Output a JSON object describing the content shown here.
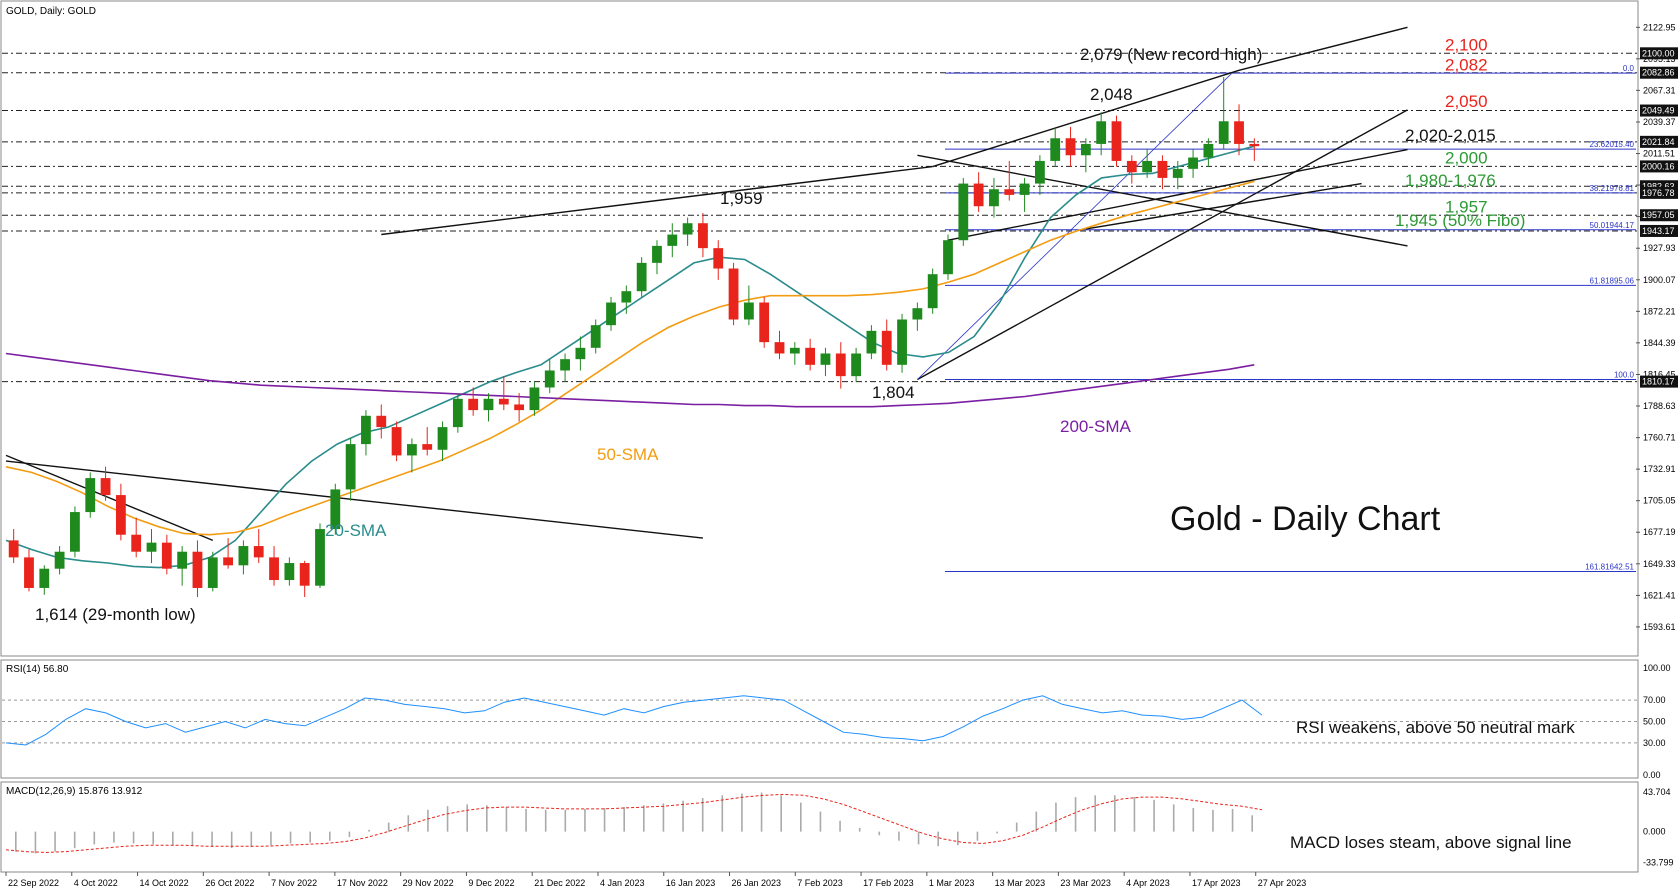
{
  "chart_data": {
    "type": "candlestick",
    "symbol_header": "GOLD, Daily:  GOLD",
    "watermark_title": "Gold - Daily Chart",
    "price_axis_ticks": [
      2122.95,
      2095.13,
      2067.31,
      2039.37,
      2011.51,
      1983.69,
      1955.87,
      1927.93,
      1900.07,
      1872.21,
      1844.39,
      1816.45,
      1788.63,
      1760.71,
      1732.91,
      1705.05,
      1677.19,
      1649.33,
      1621.41,
      1593.61
    ],
    "price_ylim": [
      1575,
      2140
    ],
    "x_labels": [
      "22 Sep 2022",
      "4 Oct 2022",
      "14 Oct 2022",
      "26 Oct 2022",
      "7 Nov 2022",
      "17 Nov 2022",
      "29 Nov 2022",
      "9 Dec 2022",
      "21 Dec 2022",
      "4 Jan 2023",
      "16 Jan 2023",
      "26 Jan 2023",
      "7 Feb 2023",
      "17 Feb 2023",
      "1 Mar 2023",
      "13 Mar 2023",
      "23 Mar 2023",
      "4 Apr 2023",
      "17 Apr 2023",
      "27 Apr 2023"
    ],
    "price_tags": [
      {
        "value": 2100.0,
        "label": "2100.00"
      },
      {
        "value": 2082.86,
        "label": "2082.86"
      },
      {
        "value": 2049.49,
        "label": "2049.49"
      },
      {
        "value": 2021.84,
        "label": "2021.84"
      },
      {
        "value": 2000.16,
        "label": "2000.16"
      },
      {
        "value": 1982.63,
        "label": "1982.63"
      },
      {
        "value": 1976.78,
        "label": "1976.78"
      },
      {
        "value": 1957.05,
        "label": "1957.05"
      },
      {
        "value": 1943.17,
        "label": "1943.17"
      },
      {
        "value": 1810.17,
        "label": "1810.17"
      }
    ],
    "fib_levels": [
      {
        "label": "0.0",
        "value": 2082.5
      },
      {
        "label": "23.62015.40",
        "value": 2015.4
      },
      {
        "label": "38.21976.81",
        "value": 1976.8
      },
      {
        "label": "50.01944.17",
        "value": 1944.2
      },
      {
        "label": "61.81895.06",
        "value": 1895.1
      },
      {
        "label": "100.0",
        "value": 1812.0
      },
      {
        "label": "161.81642.51",
        "value": 1642.5
      }
    ],
    "level_annotations": [
      {
        "text": "2,100",
        "value": 2100,
        "color": "#e8241c"
      },
      {
        "text": "2,082",
        "value": 2082,
        "color": "#e8241c"
      },
      {
        "text": "2,050",
        "value": 2050,
        "color": "#e8241c"
      },
      {
        "text": "2,020-2,015",
        "value": 2020,
        "color": "#111111"
      },
      {
        "text": "2,000",
        "value": 2000,
        "color": "#2e9a36"
      },
      {
        "text": "1,980-1,976",
        "value": 1980,
        "color": "#2e9a36"
      },
      {
        "text": "1,957",
        "value": 1957,
        "color": "#2e9a36"
      },
      {
        "text": "1,945 (50% Fibo)",
        "value": 1945,
        "color": "#2e9a36"
      }
    ],
    "point_annotations": [
      "2,079 (New record high)",
      "2,048",
      "1,959",
      "1,804",
      "1,614 (29-month low)"
    ],
    "ma_labels": [
      "20-SMA",
      "50-SMA",
      "200-SMA"
    ],
    "series": [
      {
        "name": "20-SMA",
        "color": "#2a8c8c",
        "values": [
          1670,
          1662,
          1655,
          1652,
          1650,
          1647,
          1646,
          1648,
          1655,
          1670,
          1695,
          1720,
          1740,
          1755,
          1765,
          1770,
          1780,
          1790,
          1800,
          1810,
          1818,
          1825,
          1840,
          1855,
          1870,
          1885,
          1900,
          1915,
          1920,
          1918,
          1905,
          1890,
          1875,
          1860,
          1845,
          1835,
          1832,
          1836,
          1850,
          1880,
          1920,
          1955,
          1975,
          1990,
          1993,
          1994,
          2000,
          2006,
          2012,
          2018
        ]
      },
      {
        "name": "50-SMA",
        "color": "#f39c12",
        "values": [
          1735,
          1730,
          1722,
          1712,
          1700,
          1690,
          1682,
          1676,
          1675,
          1677,
          1683,
          1692,
          1700,
          1708,
          1716,
          1724,
          1732,
          1740,
          1750,
          1760,
          1772,
          1785,
          1800,
          1815,
          1830,
          1845,
          1858,
          1868,
          1876,
          1882,
          1886,
          1886,
          1886,
          1886,
          1887,
          1889,
          1892,
          1898,
          1905,
          1915,
          1925,
          1935,
          1943,
          1950,
          1957,
          1963,
          1969,
          1975,
          1981,
          1987
        ]
      },
      {
        "name": "200-SMA",
        "color": "#7b1fa2",
        "values": [
          1835,
          1832,
          1829,
          1826,
          1823,
          1820,
          1817,
          1814,
          1811,
          1809,
          1807,
          1806,
          1805,
          1804,
          1803,
          1802,
          1801,
          1800,
          1799,
          1798,
          1797,
          1796,
          1795,
          1794,
          1793,
          1792,
          1791,
          1790,
          1790,
          1789,
          1789,
          1788,
          1788,
          1788,
          1788,
          1789,
          1790,
          1791,
          1793,
          1795,
          1797,
          1800,
          1803,
          1806,
          1809,
          1812,
          1815,
          1818,
          1821,
          1825
        ]
      }
    ],
    "candles_ohlc": [
      [
        1670,
        1680,
        1650,
        1655
      ],
      [
        1655,
        1662,
        1625,
        1628
      ],
      [
        1628,
        1648,
        1622,
        1645
      ],
      [
        1645,
        1665,
        1640,
        1660
      ],
      [
        1660,
        1700,
        1655,
        1695
      ],
      [
        1695,
        1730,
        1690,
        1725
      ],
      [
        1725,
        1735,
        1705,
        1710
      ],
      [
        1710,
        1720,
        1670,
        1675
      ],
      [
        1675,
        1690,
        1655,
        1660
      ],
      [
        1660,
        1680,
        1650,
        1668
      ],
      [
        1668,
        1675,
        1640,
        1645
      ],
      [
        1645,
        1665,
        1630,
        1660
      ],
      [
        1660,
        1670,
        1620,
        1628
      ],
      [
        1628,
        1660,
        1625,
        1655
      ],
      [
        1655,
        1672,
        1645,
        1648
      ],
      [
        1648,
        1670,
        1640,
        1665
      ],
      [
        1665,
        1680,
        1650,
        1655
      ],
      [
        1655,
        1665,
        1630,
        1635
      ],
      [
        1635,
        1655,
        1630,
        1650
      ],
      [
        1650,
        1652,
        1620,
        1630
      ],
      [
        1630,
        1685,
        1628,
        1680
      ],
      [
        1680,
        1720,
        1675,
        1715
      ],
      [
        1715,
        1760,
        1705,
        1755
      ],
      [
        1755,
        1785,
        1745,
        1780
      ],
      [
        1780,
        1790,
        1760,
        1770
      ],
      [
        1770,
        1775,
        1740,
        1745
      ],
      [
        1745,
        1760,
        1730,
        1755
      ],
      [
        1755,
        1770,
        1745,
        1750
      ],
      [
        1750,
        1775,
        1740,
        1770
      ],
      [
        1770,
        1800,
        1765,
        1795
      ],
      [
        1795,
        1805,
        1780,
        1785
      ],
      [
        1785,
        1800,
        1775,
        1795
      ],
      [
        1795,
        1815,
        1785,
        1790
      ],
      [
        1790,
        1800,
        1775,
        1785
      ],
      [
        1785,
        1810,
        1780,
        1805
      ],
      [
        1805,
        1830,
        1800,
        1820
      ],
      [
        1820,
        1835,
        1810,
        1830
      ],
      [
        1830,
        1850,
        1820,
        1840
      ],
      [
        1840,
        1865,
        1835,
        1860
      ],
      [
        1860,
        1885,
        1855,
        1880
      ],
      [
        1880,
        1895,
        1870,
        1890
      ],
      [
        1890,
        1920,
        1885,
        1915
      ],
      [
        1915,
        1935,
        1905,
        1930
      ],
      [
        1930,
        1950,
        1920,
        1940
      ],
      [
        1940,
        1955,
        1930,
        1950
      ],
      [
        1950,
        1959,
        1920,
        1928
      ],
      [
        1928,
        1935,
        1900,
        1910
      ],
      [
        1910,
        1915,
        1860,
        1865
      ],
      [
        1865,
        1895,
        1860,
        1880
      ],
      [
        1880,
        1885,
        1840,
        1845
      ],
      [
        1845,
        1855,
        1830,
        1835
      ],
      [
        1835,
        1845,
        1825,
        1840
      ],
      [
        1840,
        1848,
        1820,
        1825
      ],
      [
        1825,
        1840,
        1815,
        1835
      ],
      [
        1835,
        1845,
        1804,
        1815
      ],
      [
        1815,
        1840,
        1810,
        1835
      ],
      [
        1835,
        1860,
        1830,
        1855
      ],
      [
        1855,
        1865,
        1820,
        1825
      ],
      [
        1825,
        1870,
        1818,
        1865
      ],
      [
        1865,
        1880,
        1855,
        1875
      ],
      [
        1875,
        1910,
        1870,
        1905
      ],
      [
        1905,
        1940,
        1900,
        1935
      ],
      [
        1935,
        1990,
        1930,
        1985
      ],
      [
        1985,
        1995,
        1960,
        1965
      ],
      [
        1965,
        1990,
        1955,
        1980
      ],
      [
        1980,
        2005,
        1970,
        1975
      ],
      [
        1975,
        1990,
        1960,
        1985
      ],
      [
        1985,
        2010,
        1975,
        2005
      ],
      [
        2005,
        2035,
        2000,
        2025
      ],
      [
        2025,
        2035,
        2000,
        2010
      ],
      [
        2010,
        2025,
        1995,
        2020
      ],
      [
        2020,
        2048,
        2010,
        2040
      ],
      [
        2040,
        2045,
        2000,
        2005
      ],
      [
        2005,
        2010,
        1985,
        1995
      ],
      [
        1995,
        2015,
        1990,
        2005
      ],
      [
        2005,
        2010,
        1980,
        1990
      ],
      [
        1990,
        2005,
        1980,
        1998
      ],
      [
        1998,
        2015,
        1990,
        2008
      ],
      [
        2008,
        2025,
        2000,
        2020
      ],
      [
        2020,
        2079,
        2015,
        2040
      ],
      [
        2040,
        2055,
        2010,
        2020
      ],
      [
        2020,
        2025,
        2005,
        2018
      ]
    ],
    "rsi": {
      "header": "RSI(14) 56.80",
      "ticks": [
        100.0,
        70.0,
        50.0,
        30.0,
        0.0
      ],
      "ylim": [
        0,
        100
      ],
      "levels": [
        70,
        50,
        30
      ],
      "values": [
        30,
        28,
        38,
        52,
        62,
        58,
        50,
        44,
        48,
        40,
        45,
        50,
        44,
        52,
        48,
        46,
        54,
        62,
        72,
        70,
        66,
        64,
        62,
        58,
        60,
        68,
        72,
        68,
        64,
        60,
        56,
        62,
        58,
        64,
        68,
        70,
        72,
        74,
        72,
        70,
        60,
        50,
        40,
        38,
        35,
        34,
        32,
        36,
        45,
        55,
        62,
        70,
        74,
        66,
        62,
        58,
        60,
        56,
        55,
        52,
        54,
        62,
        70,
        56
      ],
      "note": "RSI weakens, above 50 neutral mark"
    },
    "macd": {
      "header": "MACD(12,26,9) 15.876 13.912",
      "ticks": [
        43.704,
        0.0,
        -33.799
      ],
      "ylim": [
        -40,
        48
      ],
      "note": "MACD loses steam, above signal line",
      "histogram": [
        -22,
        -24,
        -22,
        -18,
        -14,
        -12,
        -13,
        -14,
        -15,
        -16,
        -17,
        -18,
        -17,
        -15,
        -13,
        -12,
        -10,
        -6,
        2,
        10,
        18,
        24,
        28,
        30,
        29,
        27,
        25,
        24,
        24,
        25,
        26,
        27,
        29,
        31,
        34,
        37,
        40,
        42,
        43,
        40,
        32,
        22,
        12,
        4,
        -4,
        -10,
        -14,
        -16,
        -15,
        -10,
        -2,
        10,
        22,
        32,
        38,
        40,
        40,
        38,
        35,
        30,
        26,
        24,
        25,
        18
      ],
      "signal": [
        -20,
        -22,
        -23,
        -22,
        -20,
        -18,
        -16,
        -15,
        -15,
        -15,
        -16,
        -16,
        -16,
        -16,
        -15,
        -14,
        -13,
        -11,
        -7,
        -1,
        6,
        13,
        19,
        23,
        26,
        27,
        27,
        26,
        25,
        25,
        25,
        26,
        27,
        28,
        30,
        32,
        35,
        38,
        40,
        41,
        40,
        36,
        30,
        22,
        14,
        6,
        -2,
        -8,
        -12,
        -13,
        -10,
        -4,
        5,
        15,
        24,
        31,
        36,
        38,
        38,
        36,
        33,
        30,
        28,
        24
      ]
    }
  }
}
